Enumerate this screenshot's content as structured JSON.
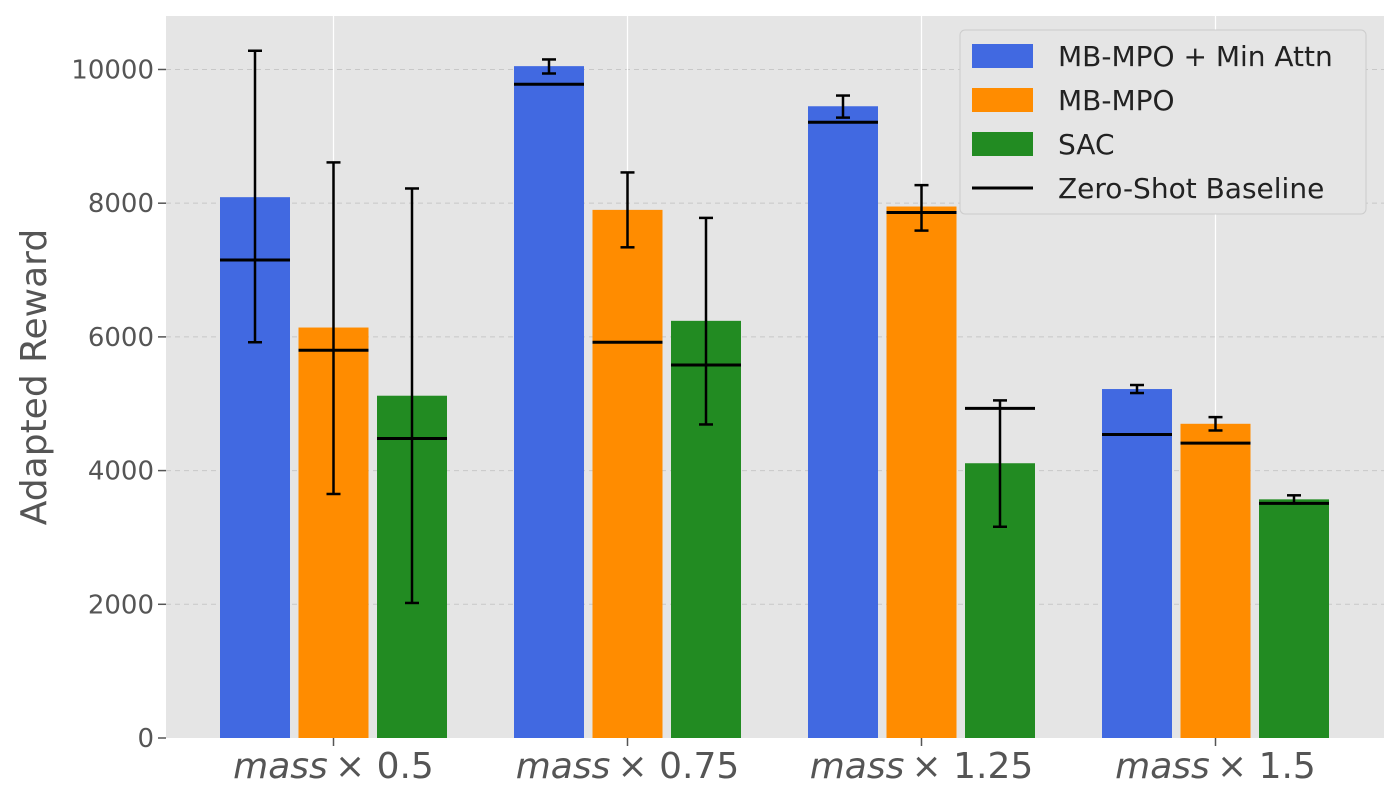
{
  "chart_data": {
    "type": "bar",
    "title": "",
    "xlabel": "",
    "ylabel": "Adapted Reward",
    "ylim": [
      0,
      10800
    ],
    "yticks": [
      0,
      2000,
      4000,
      6000,
      8000,
      10000
    ],
    "ytick_labels": [
      "0",
      "2000",
      "4000",
      "6000",
      "8000",
      "10000"
    ],
    "grid": true,
    "legend_position": "top-right",
    "categories": [
      {
        "prefix": "mass",
        "suffix": "× 0.5"
      },
      {
        "prefix": "mass",
        "suffix": "× 0.75"
      },
      {
        "prefix": "mass",
        "suffix": "× 1.25"
      },
      {
        "prefix": "mass",
        "suffix": "× 1.5"
      }
    ],
    "series": [
      {
        "name": "MB-MPO + Min Attn",
        "color": "#4169e1",
        "values": [
          8090,
          10050,
          9450,
          5220
        ],
        "err_low": [
          5920,
          9940,
          9280,
          5160
        ],
        "err_high": [
          10280,
          10150,
          9610,
          5280
        ],
        "baseline": [
          7150,
          9780,
          9210,
          4540
        ]
      },
      {
        "name": "MB-MPO",
        "color": "#ff8c00",
        "values": [
          6140,
          7900,
          7950,
          4700
        ],
        "err_low": [
          3650,
          7340,
          7590,
          4600
        ],
        "err_high": [
          8610,
          8460,
          8270,
          4800
        ],
        "baseline": [
          5800,
          5920,
          7860,
          4410
        ]
      },
      {
        "name": "SAC",
        "color": "#228b22",
        "values": [
          5120,
          6240,
          4110,
          3570
        ],
        "err_low": [
          2020,
          4690,
          3160,
          3510
        ],
        "err_high": [
          8220,
          7780,
          5050,
          3630
        ],
        "baseline": [
          4480,
          5580,
          4930,
          3510
        ]
      }
    ],
    "legend": [
      {
        "label": "MB-MPO + Min Attn",
        "kind": "patch",
        "color": "#4169e1"
      },
      {
        "label": "MB-MPO",
        "kind": "patch",
        "color": "#ff8c00"
      },
      {
        "label": "SAC",
        "kind": "patch",
        "color": "#228b22"
      },
      {
        "label": "Zero-Shot Baseline",
        "kind": "line",
        "color": "#000000"
      }
    ]
  }
}
